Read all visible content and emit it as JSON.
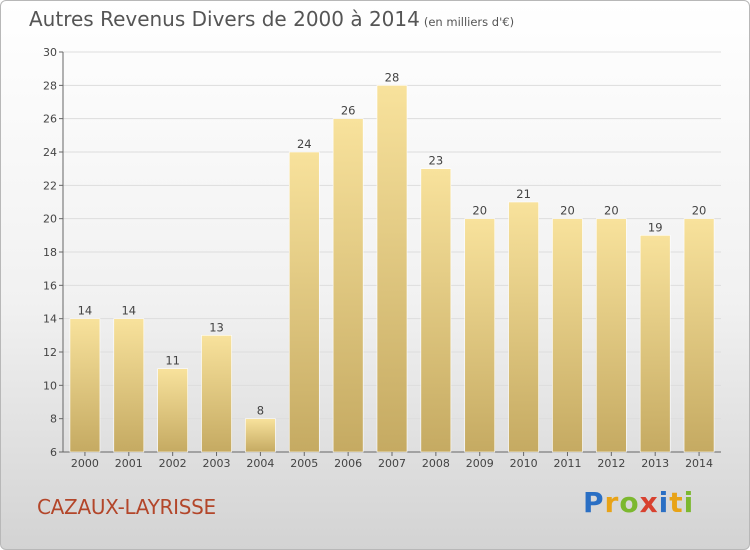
{
  "header": {
    "title": "Autres Revenus Divers de 2000 à 2014",
    "subtitle": "(en milliers d'€)"
  },
  "footer": {
    "commune": "CAZAUX-LAYRISSE",
    "brand": "Proxiti",
    "brand_letters": [
      {
        "ch": "P",
        "color": "#2a6fc4"
      },
      {
        "ch": "r",
        "color": "#e8a317"
      },
      {
        "ch": "o",
        "color": "#7cb82f"
      },
      {
        "ch": "x",
        "color": "#d8412f"
      },
      {
        "ch": "i",
        "color": "#2a6fc4"
      },
      {
        "ch": "t",
        "color": "#e8a317"
      },
      {
        "ch": "i",
        "color": "#7cb82f"
      }
    ]
  },
  "chart_data": {
    "type": "bar",
    "title": "Autres Revenus Divers de 2000 à 2014",
    "subtitle": "(en milliers d'€)",
    "categories": [
      "2000",
      "2001",
      "2002",
      "2003",
      "2004",
      "2005",
      "2006",
      "2007",
      "2008",
      "2009",
      "2010",
      "2011",
      "2012",
      "2013",
      "2014"
    ],
    "values": [
      14,
      14,
      11,
      13,
      8,
      24,
      26,
      28,
      23,
      20,
      21,
      20,
      20,
      19,
      20
    ],
    "ylim": [
      6,
      30
    ],
    "yticks": [
      6,
      8,
      10,
      12,
      14,
      16,
      18,
      20,
      22,
      24,
      26,
      28,
      30
    ],
    "grid": true,
    "colors": {
      "bar_top": "#f8e29c",
      "bar_bottom": "#c5aa62",
      "grid": "#dddddd",
      "axis": "#666666",
      "text": "#444444"
    }
  }
}
